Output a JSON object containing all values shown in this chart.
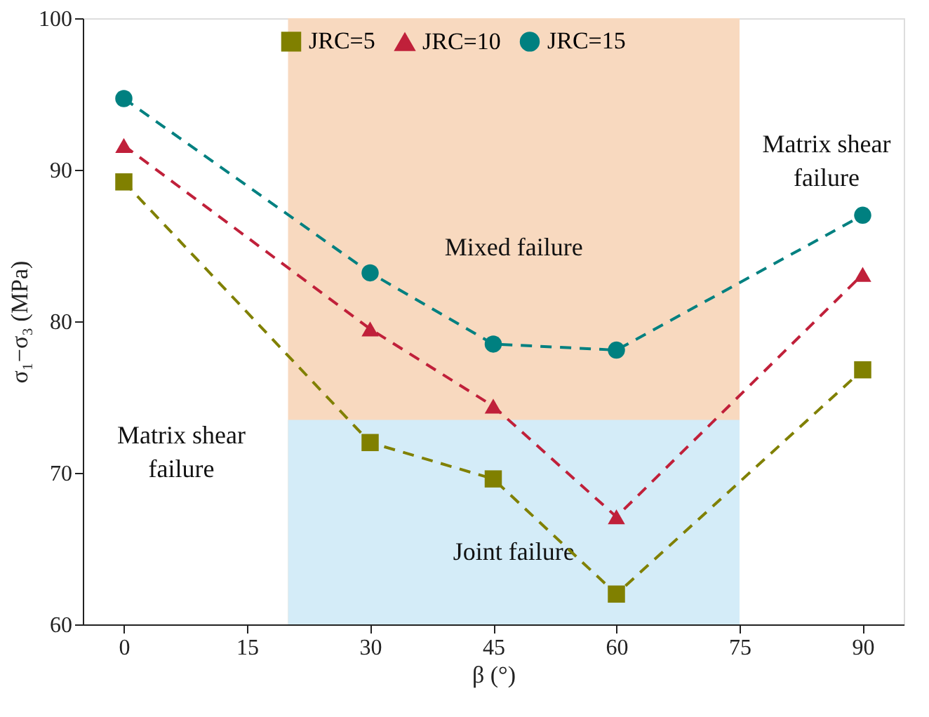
{
  "chart_data": {
    "type": "line",
    "xlabel": "β (°)",
    "ylabel": "σ₁−σ₃ (MPa)",
    "x": [
      0,
      30,
      45,
      60,
      90
    ],
    "series": [
      {
        "name": "JRC=5",
        "color": "#808000",
        "marker": "square",
        "values": [
          89.2,
          72.0,
          69.6,
          62.0,
          76.8
        ]
      },
      {
        "name": "JRC=10",
        "color": "#c0203a",
        "marker": "triangle",
        "values": [
          91.6,
          79.5,
          74.4,
          67.1,
          83.1
        ]
      },
      {
        "name": "JRC=15",
        "color": "#008080",
        "marker": "circle",
        "values": [
          94.7,
          83.2,
          78.5,
          78.1,
          87.0
        ]
      }
    ],
    "line_style": "dashed",
    "xlim": [
      -5,
      95
    ],
    "xticks": [
      0,
      15,
      30,
      45,
      60,
      75,
      90
    ],
    "ylim": [
      60,
      100
    ],
    "yticks": [
      60,
      70,
      80,
      90,
      100
    ],
    "grid": false,
    "legend": "top",
    "bands": [
      {
        "axis": "x",
        "from": 20,
        "to": 75,
        "label": "Mixed failure",
        "color": "#f8d9bf"
      },
      {
        "axis": "y",
        "from": 60,
        "to": 73.5,
        "label": "Joint failure",
        "color": "#d4ecf8"
      }
    ],
    "annotations": [
      "Matrix shear\nfailure",
      "Matrix shear\nfailure"
    ]
  }
}
